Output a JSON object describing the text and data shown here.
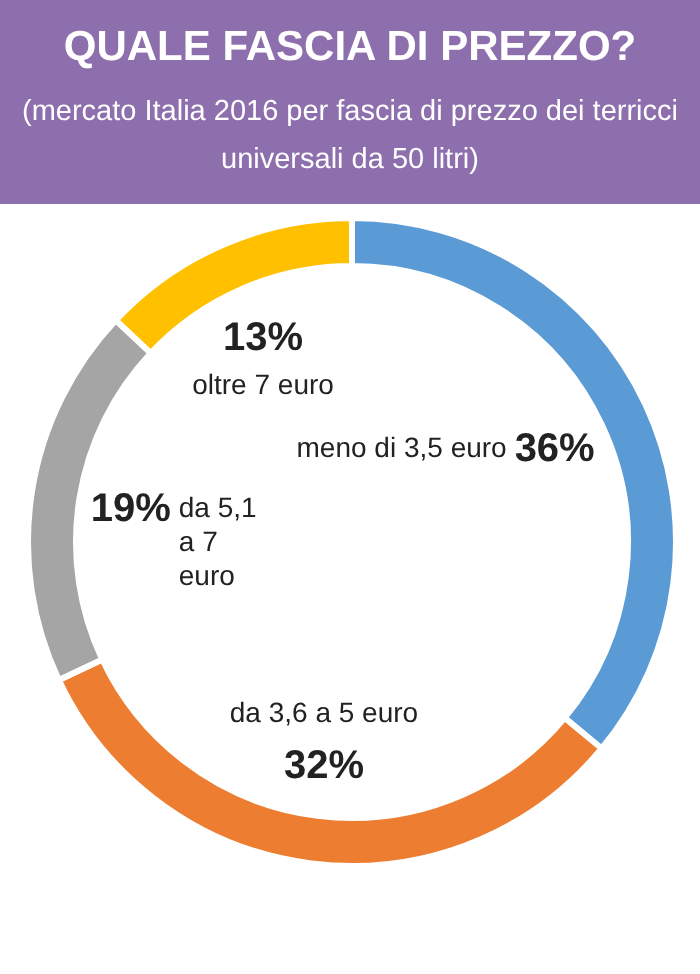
{
  "chart_data": {
    "type": "donut",
    "title": "QUALE FASCIA DI PREZZO?",
    "subtitle": "(mercato Italia 2016 per fascia di prezzo dei terricci universali da 50 litri)",
    "categories": [
      "meno di 3,5 euro",
      "da 3,6 a 5 euro",
      "da 5,1 a 7 euro",
      "oltre 7 euro"
    ],
    "values": [
      36,
      32,
      19,
      13
    ],
    "value_labels": [
      "36%",
      "32%",
      "19%",
      "13%"
    ],
    "colors": [
      "#5b9bd5",
      "#ed7d31",
      "#a5a5a5",
      "#ffc000"
    ]
  }
}
